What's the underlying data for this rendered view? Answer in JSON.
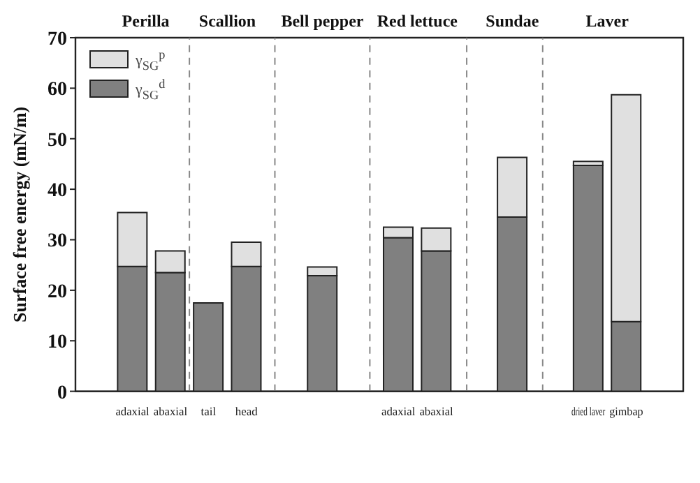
{
  "chart_data": {
    "type": "bar",
    "stacked": true,
    "ylabel": "Surface free energy (mN/m)",
    "categories": [
      null,
      "adaxial",
      "abaxial",
      "tail",
      "head",
      null,
      null,
      null,
      "adaxial",
      "abaxial",
      null,
      null,
      null,
      "dried laver",
      "gimbap",
      null
    ],
    "ylim": [
      0,
      70
    ],
    "yticks": [
      0,
      10,
      20,
      30,
      40,
      50,
      60,
      70
    ],
    "series": [
      {
        "name": "γ$_{SG}$$^{d}$",
        "color": "#808080",
        "values": [
          null,
          24.7,
          23.5,
          17.5,
          24.7,
          null,
          22.9,
          null,
          30.4,
          27.8,
          null,
          34.5,
          null,
          44.7,
          13.8,
          null
        ]
      },
      {
        "name": "γ$_{SG}$$^{p}$",
        "color": "#e0e0e0",
        "values": [
          null,
          10.7,
          4.3,
          0,
          4.8,
          null,
          1.7,
          null,
          2.1,
          4.5,
          null,
          11.8,
          null,
          0.8,
          44.9,
          null
        ]
      }
    ],
    "annotations": [
      "Perilla",
      "Scallion",
      "Bell pepper",
      "Red lettuce",
      "Sundae",
      "Laver"
    ],
    "legend": "top left",
    "grid": false
  }
}
